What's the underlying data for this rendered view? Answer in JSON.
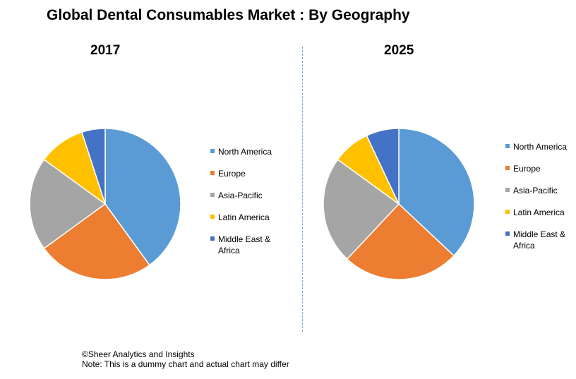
{
  "title": "Global Dental Consumables Market : By Geography",
  "colors": {
    "North America": "#5b9bd5",
    "Europe": "#ed7d31",
    "Asia-Pacific": "#a5a5a5",
    "Latin America": "#ffc000",
    "Middle East & Africa": "#4472c4"
  },
  "chart_data": [
    {
      "type": "pie",
      "title": "2017",
      "categories": [
        "North America",
        "Europe",
        "Asia-Pacific",
        "Latin America",
        "Middle East & Africa"
      ],
      "values": [
        40,
        25,
        20,
        10,
        5
      ],
      "legend_position": "right"
    },
    {
      "type": "pie",
      "title": "2025",
      "categories": [
        "North America",
        "Europe",
        "Asia-Pacific",
        "Latin America",
        "Middle East & Africa"
      ],
      "values": [
        37,
        25,
        23,
        8,
        7
      ],
      "legend_position": "right"
    }
  ],
  "footer": {
    "copyright": "©Sheer Analytics and Insights",
    "note": "Note: This is a dummy chart and actual chart may differ"
  }
}
